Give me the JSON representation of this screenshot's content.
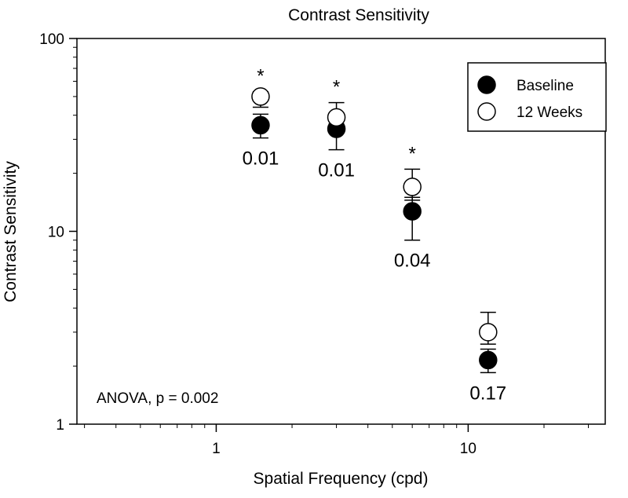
{
  "chart_data": {
    "type": "scatter",
    "title": "Contrast Sensitivity",
    "xlabel": "Spatial Frequency (cpd)",
    "ylabel": "Contrast Sensitivity",
    "xscale": "log",
    "yscale": "log",
    "xlim": [
      0.28,
      35
    ],
    "ylim": [
      1,
      100
    ],
    "x_ticks": [
      1,
      10
    ],
    "x_tick_labels": [
      "1",
      "10"
    ],
    "y_ticks": [
      1,
      10,
      100
    ],
    "y_tick_labels": [
      "1",
      "10",
      "100"
    ],
    "legend_position": "top-right",
    "series": [
      {
        "name": "Baseline",
        "marker": "filled-circle",
        "color": "#000000",
        "points": [
          {
            "x": 1.5,
            "y": 35.5,
            "err_up": 40.5,
            "err_down": 30.5
          },
          {
            "x": 3.0,
            "y": 34.0,
            "err_up": 36.0,
            "err_down": 26.5
          },
          {
            "x": 6.0,
            "y": 12.7,
            "err_up": 15.0,
            "err_down": 9.0
          },
          {
            "x": 12.0,
            "y": 2.15,
            "err_up": 2.45,
            "err_down": 1.85
          }
        ]
      },
      {
        "name": "12 Weeks",
        "marker": "open-circle",
        "color": "#ffffff",
        "points": [
          {
            "x": 1.5,
            "y": 50.0,
            "err_up": 53.0,
            "err_down": 44.0
          },
          {
            "x": 3.0,
            "y": 39.0,
            "err_up": 46.5,
            "err_down": 35.0
          },
          {
            "x": 6.0,
            "y": 17.0,
            "err_up": 21.0,
            "err_down": 14.5
          },
          {
            "x": 12.0,
            "y": 3.0,
            "err_up": 3.8,
            "err_down": 2.6
          }
        ]
      }
    ],
    "point_annotations": [
      {
        "x": 1.5,
        "p_value": "0.01",
        "significance": "*"
      },
      {
        "x": 3.0,
        "p_value": "0.01",
        "significance": "*"
      },
      {
        "x": 6.0,
        "p_value": "0.04",
        "significance": "*"
      },
      {
        "x": 12.0,
        "p_value": "0.17",
        "significance": ""
      }
    ],
    "annotation_text": "ANOVA, p = 0.002"
  }
}
